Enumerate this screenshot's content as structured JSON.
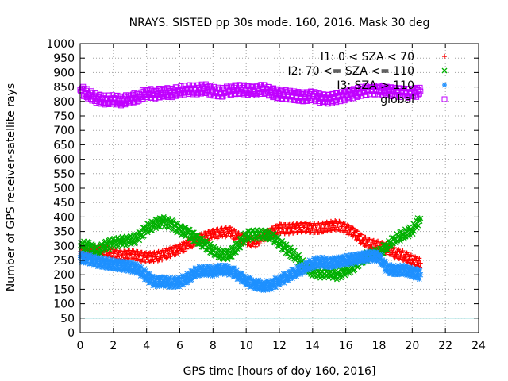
{
  "chart_data": {
    "type": "scatter",
    "title": "NRAYS. SISTED pp 30s mode. 160, 2016. Mask 30 deg",
    "xlabel": "GPS time [hours of doy 160, 2016]",
    "ylabel": "Number of GPS receiver-satellite rays",
    "xlim": [
      0,
      24
    ],
    "ylim": [
      0,
      1000
    ],
    "xticks": [
      0,
      2,
      4,
      6,
      8,
      10,
      12,
      14,
      16,
      18,
      20,
      22,
      24
    ],
    "yticks": [
      0,
      50,
      100,
      150,
      200,
      250,
      300,
      350,
      400,
      450,
      500,
      550,
      600,
      650,
      700,
      750,
      800,
      850,
      900,
      950,
      1000
    ],
    "grid": true,
    "legend_position": "top-right",
    "reference_line": {
      "y": 50,
      "color": "#40c0c0"
    },
    "series": [
      {
        "name": "I1: 0 < SZA < 70",
        "marker": "+",
        "color": "#ff0000",
        "x": [
          0,
          0.5,
          1,
          1.5,
          2,
          2.5,
          3,
          3.5,
          4,
          4.5,
          5,
          5.5,
          6,
          6.5,
          7,
          7.5,
          8,
          8.5,
          9,
          9.5,
          10,
          10.5,
          11,
          11.5,
          12,
          12.5,
          13,
          13.5,
          14,
          14.5,
          15,
          15.5,
          16,
          16.5,
          17,
          17.5,
          18,
          18.5,
          19,
          19.5,
          20,
          20.5
        ],
        "y": [
          280,
          275,
          285,
          285,
          275,
          265,
          270,
          265,
          260,
          262,
          268,
          280,
          290,
          305,
          320,
          330,
          340,
          345,
          350,
          330,
          320,
          310,
          330,
          345,
          360,
          358,
          362,
          365,
          360,
          362,
          368,
          372,
          360,
          345,
          320,
          305,
          300,
          290,
          275,
          265,
          250,
          240
        ]
      },
      {
        "name": "I2: 70 <= SZA <= 110",
        "marker": "x",
        "color": "#00b000",
        "x": [
          0,
          0.5,
          1,
          1.5,
          2,
          2.5,
          3,
          3.5,
          4,
          4.5,
          5,
          5.5,
          6,
          6.5,
          7,
          7.5,
          8,
          8.5,
          9,
          9.5,
          10,
          10.5,
          11,
          11.5,
          12,
          12.5,
          13,
          13.5,
          14,
          14.5,
          15,
          15.5,
          16,
          16.5,
          17,
          17.5,
          18,
          18.5,
          19,
          19.5,
          20,
          20.5
        ],
        "y": [
          300,
          300,
          280,
          300,
          310,
          315,
          318,
          330,
          360,
          375,
          385,
          375,
          355,
          345,
          325,
          305,
          285,
          270,
          270,
          300,
          335,
          340,
          340,
          335,
          310,
          285,
          265,
          230,
          210,
          205,
          208,
          200,
          215,
          230,
          255,
          270,
          275,
          300,
          325,
          340,
          355,
          395
        ]
      },
      {
        "name": "I3: SZA > 110",
        "marker": "*",
        "color": "#1e90ff",
        "x": [
          0,
          0.5,
          1,
          1.5,
          2,
          2.5,
          3,
          3.5,
          4,
          4.5,
          5,
          5.5,
          6,
          6.5,
          7,
          7.5,
          8,
          8.5,
          9,
          9.5,
          10,
          10.5,
          11,
          11.5,
          12,
          12.5,
          13,
          13.5,
          14,
          14.5,
          15,
          15.5,
          16,
          16.5,
          17,
          17.5,
          18,
          18.5,
          19,
          19.5,
          20,
          20.5
        ],
        "y": [
          260,
          255,
          245,
          240,
          235,
          232,
          228,
          220,
          195,
          175,
          178,
          172,
          175,
          190,
          210,
          215,
          212,
          220,
          215,
          200,
          180,
          168,
          162,
          165,
          180,
          195,
          210,
          225,
          240,
          245,
          240,
          245,
          250,
          255,
          260,
          265,
          262,
          220,
          215,
          218,
          208,
          200
        ]
      },
      {
        "name": "global",
        "marker": "square",
        "color": "#c000ff",
        "x": [
          0,
          0.5,
          1,
          1.5,
          2,
          2.5,
          3,
          3.5,
          4,
          4.5,
          5,
          5.5,
          6,
          6.5,
          7,
          7.5,
          8,
          8.5,
          9,
          9.5,
          10,
          10.5,
          11,
          11.5,
          12,
          12.5,
          13,
          13.5,
          14,
          14.5,
          15,
          15.5,
          16,
          16.5,
          17,
          17.5,
          18,
          18.5,
          19,
          19.5,
          20,
          20.5
        ],
        "y": [
          840,
          825,
          810,
          805,
          808,
          802,
          810,
          815,
          830,
          825,
          832,
          830,
          838,
          842,
          840,
          845,
          835,
          830,
          838,
          842,
          840,
          835,
          845,
          832,
          825,
          822,
          818,
          815,
          820,
          810,
          808,
          815,
          820,
          828,
          835,
          840,
          838,
          835,
          832,
          830,
          828,
          835
        ]
      }
    ]
  }
}
